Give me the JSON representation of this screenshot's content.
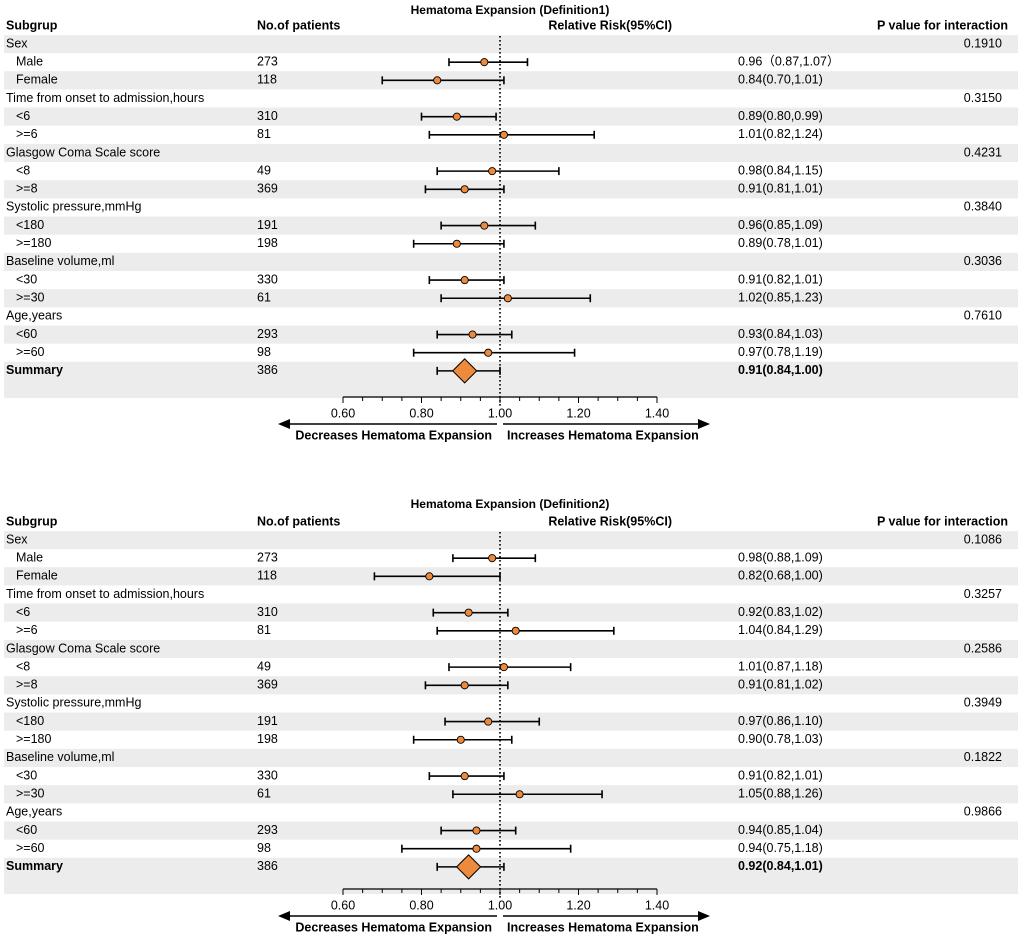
{
  "colors": {
    "band": "#ececec",
    "point": "#ee8a3c",
    "line": "#000000"
  },
  "legend": {
    "decreases": "Decreases Hematoma Expansion",
    "increases": "Increases Hematoma Expansion"
  },
  "chart_data": [
    {
      "type": "forest",
      "title": "Hematoma Expansion (Definition1)",
      "headers": [
        "Subgrup",
        "No.of patients",
        "Relative Risk(95%CI)",
        "P value for interaction"
      ],
      "ticks": [
        "0.60",
        "0.80",
        "1.00",
        "1.20",
        "1.40"
      ],
      "xlim": [
        0.6,
        1.4
      ],
      "reference": 1.0,
      "rows": [
        {
          "kind": "group",
          "label": "Sex",
          "p": "0.1910"
        },
        {
          "kind": "item",
          "label": "Male",
          "n": "273",
          "rr": 0.96,
          "lo": 0.87,
          "hi": 1.07,
          "ci": "0.96（0.87,1.07）"
        },
        {
          "kind": "item",
          "label": "Female",
          "n": "118",
          "rr": 0.84,
          "lo": 0.7,
          "hi": 1.01,
          "ci": "0.84(0.70,1.01)"
        },
        {
          "kind": "group",
          "label": "Time from onset to admission,hours",
          "p": "0.3150"
        },
        {
          "kind": "item",
          "label": "<6",
          "n": "310",
          "rr": 0.89,
          "lo": 0.8,
          "hi": 0.99,
          "ci": "0.89(0.80,0.99)"
        },
        {
          "kind": "item",
          "label": ">=6",
          "n": "81",
          "rr": 1.01,
          "lo": 0.82,
          "hi": 1.24,
          "ci": "1.01(0.82,1.24)"
        },
        {
          "kind": "group",
          "label": "Glasgow Coma Scale score",
          "p": "0.4231"
        },
        {
          "kind": "item",
          "label": "<8",
          "n": "49",
          "rr": 0.98,
          "lo": 0.84,
          "hi": 1.15,
          "ci": "0.98(0.84,1.15)"
        },
        {
          "kind": "item",
          "label": ">=8",
          "n": "369",
          "rr": 0.91,
          "lo": 0.81,
          "hi": 1.01,
          "ci": "0.91(0.81,1.01)"
        },
        {
          "kind": "group",
          "label": "Systolic pressure,mmHg",
          "p": "0.3840"
        },
        {
          "kind": "item",
          "label": "<180",
          "n": "191",
          "rr": 0.96,
          "lo": 0.85,
          "hi": 1.09,
          "ci": "0.96(0.85,1.09)"
        },
        {
          "kind": "item",
          "label": ">=180",
          "n": "198",
          "rr": 0.89,
          "lo": 0.78,
          "hi": 1.01,
          "ci": "0.89(0.78,1.01)"
        },
        {
          "kind": "group",
          "label": "Baseline volume,ml",
          "p": "0.3036"
        },
        {
          "kind": "item",
          "label": "<30",
          "n": "330",
          "rr": 0.91,
          "lo": 0.82,
          "hi": 1.01,
          "ci": "0.91(0.82,1.01)"
        },
        {
          "kind": "item",
          "label": ">=30",
          "n": "61",
          "rr": 1.02,
          "lo": 0.85,
          "hi": 1.23,
          "ci": "1.02(0.85,1.23)"
        },
        {
          "kind": "group",
          "label": "Age,years",
          "p": "0.7610"
        },
        {
          "kind": "item",
          "label": "<60",
          "n": "293",
          "rr": 0.93,
          "lo": 0.84,
          "hi": 1.03,
          "ci": "0.93(0.84,1.03)"
        },
        {
          "kind": "item",
          "label": ">=60",
          "n": "98",
          "rr": 0.97,
          "lo": 0.78,
          "hi": 1.19,
          "ci": "0.97(0.78,1.19)"
        },
        {
          "kind": "summary",
          "label": "Summary",
          "n": "386",
          "rr": 0.91,
          "lo": 0.84,
          "hi": 1.0,
          "ci": "0.91(0.84,1.00)"
        }
      ]
    },
    {
      "type": "forest",
      "title": "Hematoma Expansion (Definition2)",
      "headers": [
        "Subgrup",
        "No.of patients",
        "Relative Risk(95%CI)",
        "P value for interaction"
      ],
      "ticks": [
        "0.60",
        "0.80",
        "1.00",
        "1.20",
        "1.40"
      ],
      "xlim": [
        0.6,
        1.4
      ],
      "reference": 1.0,
      "rows": [
        {
          "kind": "group",
          "label": "Sex",
          "p": "0.1086"
        },
        {
          "kind": "item",
          "label": "Male",
          "n": "273",
          "rr": 0.98,
          "lo": 0.88,
          "hi": 1.09,
          "ci": "0.98(0.88,1.09)"
        },
        {
          "kind": "item",
          "label": "Female",
          "n": "118",
          "rr": 0.82,
          "lo": 0.68,
          "hi": 1.0,
          "ci": "0.82(0.68,1.00)"
        },
        {
          "kind": "group",
          "label": "Time from onset to admission,hours",
          "p": "0.3257"
        },
        {
          "kind": "item",
          "label": "<6",
          "n": "310",
          "rr": 0.92,
          "lo": 0.83,
          "hi": 1.02,
          "ci": "0.92(0.83,1.02)"
        },
        {
          "kind": "item",
          "label": ">=6",
          "n": "81",
          "rr": 1.04,
          "lo": 0.84,
          "hi": 1.29,
          "ci": "1.04(0.84,1.29)"
        },
        {
          "kind": "group",
          "label": "Glasgow Coma Scale score",
          "p": "0.2586"
        },
        {
          "kind": "item",
          "label": "<8",
          "n": "49",
          "rr": 1.01,
          "lo": 0.87,
          "hi": 1.18,
          "ci": "1.01(0.87,1.18)"
        },
        {
          "kind": "item",
          "label": ">=8",
          "n": "369",
          "rr": 0.91,
          "lo": 0.81,
          "hi": 1.02,
          "ci": "0.91(0.81,1.02)"
        },
        {
          "kind": "group",
          "label": "Systolic pressure,mmHg",
          "p": "0.3949"
        },
        {
          "kind": "item",
          "label": "<180",
          "n": "191",
          "rr": 0.97,
          "lo": 0.86,
          "hi": 1.1,
          "ci": "0.97(0.86,1.10)"
        },
        {
          "kind": "item",
          "label": ">=180",
          "n": "198",
          "rr": 0.9,
          "lo": 0.78,
          "hi": 1.03,
          "ci": "0.90(0.78,1.03)"
        },
        {
          "kind": "group",
          "label": "Baseline volume,ml",
          "p": "0.1822"
        },
        {
          "kind": "item",
          "label": "<30",
          "n": "330",
          "rr": 0.91,
          "lo": 0.82,
          "hi": 1.01,
          "ci": "0.91(0.82,1.01)"
        },
        {
          "kind": "item",
          "label": ">=30",
          "n": "61",
          "rr": 1.05,
          "lo": 0.88,
          "hi": 1.26,
          "ci": "1.05(0.88,1.26)"
        },
        {
          "kind": "group",
          "label": "Age,years",
          "p": "0.9866"
        },
        {
          "kind": "item",
          "label": "<60",
          "n": "293",
          "rr": 0.94,
          "lo": 0.85,
          "hi": 1.04,
          "ci": "0.94(0.85,1.04)"
        },
        {
          "kind": "item",
          "label": ">=60",
          "n": "98",
          "rr": 0.94,
          "lo": 0.75,
          "hi": 1.18,
          "ci": "0.94(0.75,1.18)"
        },
        {
          "kind": "summary",
          "label": "Summary",
          "n": "386",
          "rr": 0.92,
          "lo": 0.84,
          "hi": 1.01,
          "ci": "0.92(0.84,1.01)"
        }
      ]
    }
  ]
}
